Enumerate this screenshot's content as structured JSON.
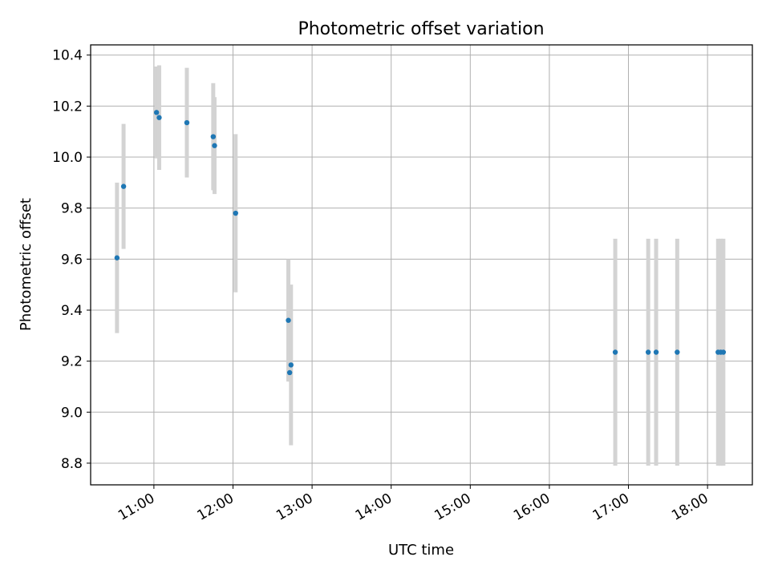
{
  "chart_data": {
    "type": "scatter",
    "title": "Photometric offset variation",
    "xlabel": "UTC time",
    "ylabel": "Photometric offset",
    "xlim": [
      "10:12",
      "18:34"
    ],
    "ylim": [
      8.715,
      10.44
    ],
    "x_ticks": [
      "11:00",
      "12:00",
      "13:00",
      "14:00",
      "15:00",
      "16:00",
      "17:00",
      "18:00"
    ],
    "y_ticks": [
      8.8,
      9.0,
      9.2,
      9.4,
      9.6,
      9.8,
      10.0,
      10.2,
      10.4
    ],
    "grid": true,
    "colors": {
      "point": "#1f77b4",
      "errorbar": "#d3d3d3",
      "grid": "#b0b0b0"
    },
    "points": [
      {
        "time": "10:32",
        "value": 9.605,
        "error": 0.295
      },
      {
        "time": "10:37",
        "value": 9.885,
        "error": 0.245
      },
      {
        "time": "11:02",
        "value": 10.175,
        "error": 0.18
      },
      {
        "time": "11:04",
        "value": 10.155,
        "error": 0.205
      },
      {
        "time": "11:25",
        "value": 10.135,
        "error": 0.215
      },
      {
        "time": "11:45",
        "value": 10.08,
        "error": 0.21
      },
      {
        "time": "11:46",
        "value": 10.045,
        "error": 0.19
      },
      {
        "time": "12:02",
        "value": 9.78,
        "error": 0.31
      },
      {
        "time": "12:42",
        "value": 9.36,
        "error": 0.24
      },
      {
        "time": "12:43",
        "value": 9.155,
        "error": 0.035
      },
      {
        "time": "12:44",
        "value": 9.185,
        "error": 0.315
      },
      {
        "time": "16:50",
        "value": 9.235,
        "error": 0.445
      },
      {
        "time": "17:15",
        "value": 9.235,
        "error": 0.445
      },
      {
        "time": "17:21",
        "value": 9.235,
        "error": 0.445
      },
      {
        "time": "17:37",
        "value": 9.235,
        "error": 0.445
      },
      {
        "time": "18:08",
        "value": 9.235,
        "error": 0.445
      },
      {
        "time": "18:10",
        "value": 9.235,
        "error": 0.445
      },
      {
        "time": "18:12",
        "value": 9.235,
        "error": 0.445
      }
    ]
  }
}
